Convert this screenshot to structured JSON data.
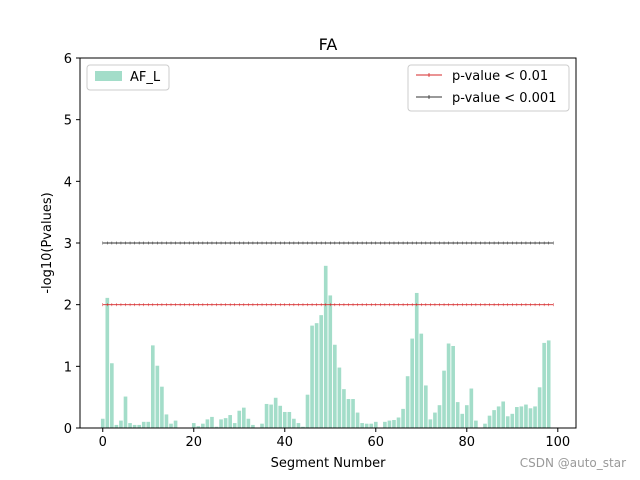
{
  "chart_data": {
    "type": "bar",
    "title": "FA",
    "xlabel": "Segment Number",
    "ylabel": "-log10(Pvalues)",
    "xlim": [
      -5,
      104
    ],
    "ylim": [
      0,
      6
    ],
    "xticks": [
      "0",
      "20",
      "40",
      "60",
      "80",
      "100"
    ],
    "xtick_values": [
      0,
      20,
      40,
      60,
      80,
      100
    ],
    "yticks": [
      "0",
      "1",
      "2",
      "3",
      "4",
      "5",
      "6"
    ],
    "ytick_values": [
      0,
      1,
      2,
      3,
      4,
      5,
      6
    ],
    "bar_color": "#a3ddc9",
    "series": [
      {
        "name": "AF_L",
        "x_start": 0,
        "values": [
          0.15,
          2.11,
          1.05,
          0.05,
          0.12,
          0.51,
          0.08,
          0.05,
          0.05,
          0.1,
          0.1,
          1.34,
          1.01,
          0.67,
          0.22,
          0.07,
          0.12,
          0.0,
          0.0,
          0.0,
          0.08,
          0.03,
          0.07,
          0.14,
          0.18,
          0.02,
          0.14,
          0.16,
          0.21,
          0.08,
          0.28,
          0.33,
          0.15,
          0.05,
          0.0,
          0.07,
          0.39,
          0.38,
          0.49,
          0.36,
          0.26,
          0.26,
          0.15,
          0.08,
          0.02,
          0.54,
          1.66,
          1.7,
          1.83,
          2.63,
          2.15,
          1.35,
          0.98,
          0.63,
          0.47,
          0.47,
          0.25,
          0.08,
          0.07,
          0.07,
          0.1,
          0.0,
          0.1,
          0.12,
          0.13,
          0.17,
          0.31,
          0.84,
          1.45,
          2.19,
          1.53,
          0.69,
          0.14,
          0.25,
          0.37,
          0.93,
          1.37,
          1.33,
          0.42,
          0.23,
          0.37,
          0.64,
          0.12,
          0.0,
          0.07,
          0.2,
          0.29,
          0.35,
          0.43,
          0.19,
          0.23,
          0.34,
          0.35,
          0.38,
          0.32,
          0.35,
          0.66,
          1.38,
          1.42
        ]
      }
    ],
    "lines": [
      {
        "name": "p-value < 0.01",
        "y": 2,
        "x_range": [
          0,
          99
        ],
        "color": "#d62728"
      },
      {
        "name": "p-value < 0.001",
        "y": 3,
        "x_range": [
          0,
          99
        ],
        "color": "#333333"
      }
    ],
    "legends": {
      "left": {
        "position": "top-left",
        "entries": [
          "AF_L"
        ]
      },
      "right": {
        "position": "top-right",
        "entries": [
          "p-value < 0.01",
          "p-value < 0.001"
        ]
      }
    },
    "grid": false
  },
  "watermark": "CSDN @auto_star"
}
